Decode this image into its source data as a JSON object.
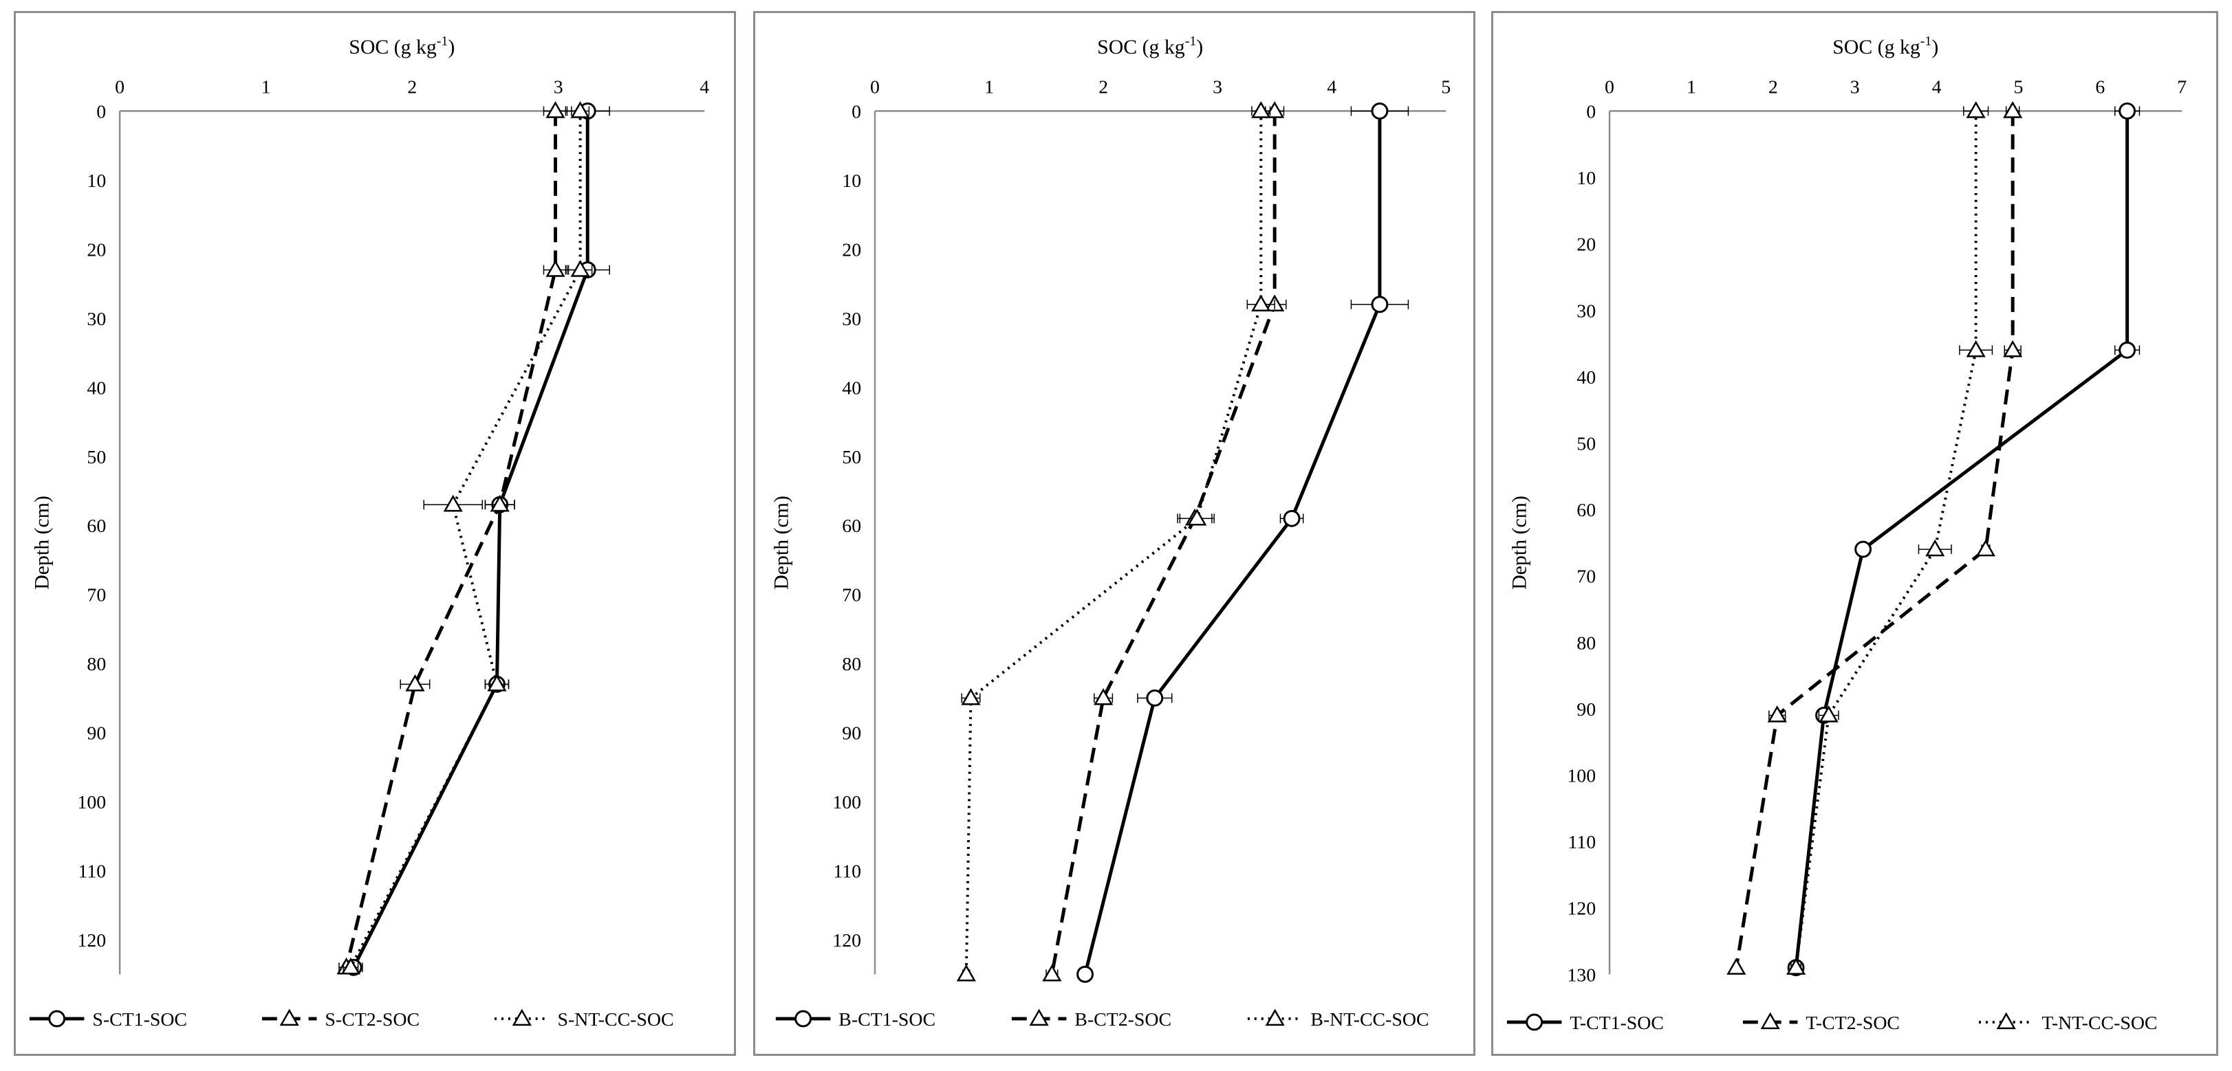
{
  "chart_data": [
    {
      "type": "line",
      "xlabel_main": "SOC (g kg",
      "xlabel_sup": "-1",
      "xlabel_end": ")",
      "ylabel": "Depth (cm)",
      "xlim": [
        0,
        4
      ],
      "ylim": [
        0,
        125
      ],
      "xticks": [
        "0",
        "1",
        "2",
        "3",
        "4"
      ],
      "yticks": [
        "0",
        "10",
        "20",
        "30",
        "40",
        "50",
        "60",
        "70",
        "80",
        "90",
        "100",
        "110",
        "120"
      ],
      "series": [
        {
          "name": "S-CT1-SOC",
          "style": "solid",
          "marker": "circle",
          "points": [
            [
              3.2,
              0
            ],
            [
              3.2,
              23
            ],
            [
              2.6,
              57
            ],
            [
              2.58,
              83
            ],
            [
              1.6,
              124
            ]
          ],
          "errors": [
            0.15,
            0.15,
            0.1,
            0.08,
            0.06
          ]
        },
        {
          "name": "S-CT2-SOC",
          "style": "dashed",
          "marker": "triangle",
          "points": [
            [
              2.98,
              0
            ],
            [
              2.98,
              23
            ],
            [
              2.6,
              57
            ],
            [
              2.02,
              83
            ],
            [
              1.55,
              124
            ]
          ],
          "errors": [
            0.08,
            0.08,
            0.1,
            0.1,
            0.05
          ]
        },
        {
          "name": "S-NT-CC-SOC",
          "style": "dotted",
          "marker": "triangle",
          "points": [
            [
              3.15,
              0
            ],
            [
              3.15,
              23
            ],
            [
              2.28,
              57
            ],
            [
              2.58,
              83
            ],
            [
              1.58,
              124
            ]
          ],
          "errors": [
            0.06,
            0.08,
            0.2,
            0.08,
            0.05
          ]
        }
      ]
    },
    {
      "type": "line",
      "xlabel_main": "SOC (g kg",
      "xlabel_sup": "-1",
      "xlabel_end": ")",
      "ylabel": "Depth (cm)",
      "xlim": [
        0,
        5
      ],
      "ylim": [
        0,
        125
      ],
      "xticks": [
        "0",
        "1",
        "2",
        "3",
        "4",
        "5"
      ],
      "yticks": [
        "0",
        "10",
        "20",
        "30",
        "40",
        "50",
        "60",
        "70",
        "80",
        "90",
        "100",
        "110",
        "120"
      ],
      "series": [
        {
          "name": "B-CT1-SOC",
          "style": "solid",
          "marker": "circle",
          "points": [
            [
              4.42,
              0
            ],
            [
              4.42,
              28
            ],
            [
              3.65,
              59
            ],
            [
              2.45,
              85
            ],
            [
              1.84,
              125
            ]
          ],
          "errors": [
            0.25,
            0.25,
            0.1,
            0.15,
            0.0
          ]
        },
        {
          "name": "B-CT2-SOC",
          "style": "dashed",
          "marker": "triangle",
          "points": [
            [
              3.5,
              0
            ],
            [
              3.5,
              28
            ],
            [
              2.8,
              59
            ],
            [
              2.0,
              85
            ],
            [
              1.55,
              125
            ]
          ],
          "errors": [
            0.08,
            0.1,
            0.15,
            0.08,
            0.05
          ]
        },
        {
          "name": "B-NT-CC-SOC",
          "style": "dotted",
          "marker": "triangle",
          "points": [
            [
              3.38,
              0
            ],
            [
              3.38,
              28
            ],
            [
              2.82,
              59
            ],
            [
              0.84,
              85
            ],
            [
              0.8,
              125
            ]
          ],
          "errors": [
            0.08,
            0.12,
            0.15,
            0.08,
            0.03
          ]
        }
      ]
    },
    {
      "type": "line",
      "xlabel_main": "SOC (g kg",
      "xlabel_sup": "-1",
      "xlabel_end": ")",
      "ylabel": "Depth (cm)",
      "xlim": [
        0,
        7
      ],
      "ylim": [
        0,
        130
      ],
      "xticks": [
        "0",
        "1",
        "2",
        "3",
        "4",
        "5",
        "6",
        "7"
      ],
      "yticks": [
        "0",
        "10",
        "20",
        "30",
        "40",
        "50",
        "60",
        "70",
        "80",
        "90",
        "100",
        "110",
        "120",
        "130"
      ],
      "series": [
        {
          "name": "T-CT1-SOC",
          "style": "solid",
          "marker": "circle",
          "points": [
            [
              6.33,
              0
            ],
            [
              6.33,
              36
            ],
            [
              3.1,
              66
            ],
            [
              2.62,
              91
            ],
            [
              2.28,
              129
            ]
          ],
          "errors": [
            0.15,
            0.15,
            0.0,
            0.08,
            0.06
          ]
        },
        {
          "name": "T-CT2-SOC",
          "style": "dashed",
          "marker": "triangle",
          "points": [
            [
              4.93,
              0
            ],
            [
              4.93,
              36
            ],
            [
              4.6,
              66
            ],
            [
              2.05,
              91
            ],
            [
              1.55,
              129
            ]
          ],
          "errors": [
            0.08,
            0.1,
            0.05,
            0.1,
            0.03
          ]
        },
        {
          "name": "T-NT-CC-SOC",
          "style": "dotted",
          "marker": "triangle",
          "points": [
            [
              4.48,
              0
            ],
            [
              4.48,
              36
            ],
            [
              3.98,
              66
            ],
            [
              2.68,
              91
            ],
            [
              2.28,
              129
            ]
          ],
          "errors": [
            0.15,
            0.2,
            0.2,
            0.12,
            0.06
          ]
        }
      ]
    }
  ],
  "colors": {
    "line": "#000000",
    "axis": "#8c8c8c",
    "marker_fill": "#ffffff"
  }
}
